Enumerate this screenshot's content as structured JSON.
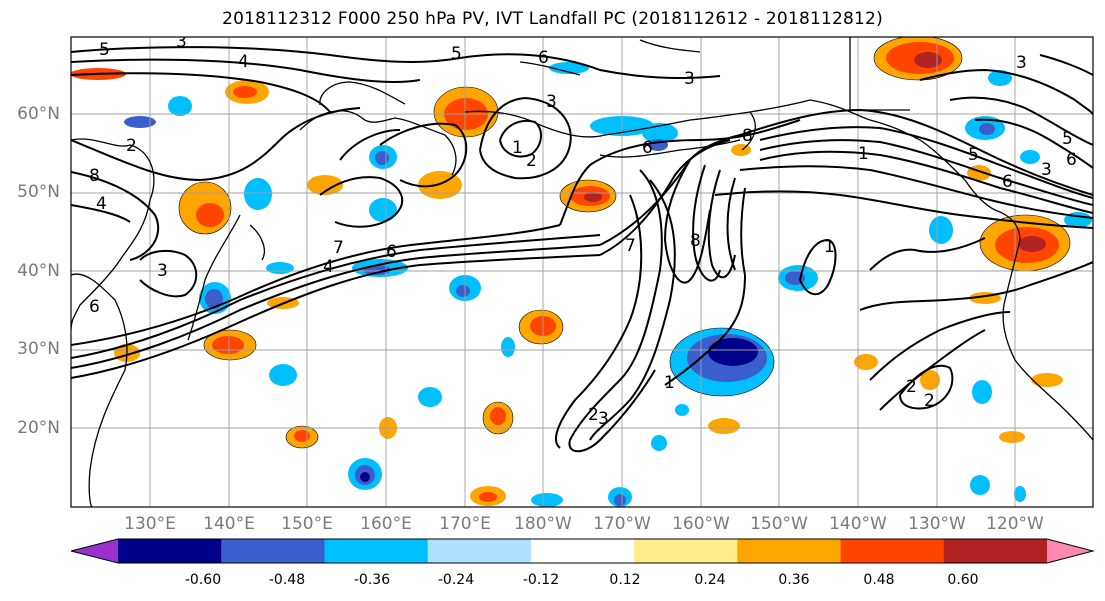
{
  "title": "2018112312 F000 250 hPa PV, IVT Landfall PC (2018112612 - 2018112812)",
  "lat_labels": [
    "60°N",
    "50°N",
    "40°N",
    "30°N",
    "20°N"
  ],
  "lon_labels": [
    "130°E",
    "140°E",
    "150°E",
    "160°E",
    "170°E",
    "180°W",
    "170°W",
    "160°W",
    "150°W",
    "140°W",
    "130°W",
    "120°W"
  ],
  "colorbar": {
    "colors": [
      "#9932cc",
      "#00008b",
      "#3a5fcd",
      "#00bfff",
      "#b0e2ff",
      "#ffffff",
      "#ffec8b",
      "#ffa500",
      "#ff4500",
      "#b22222",
      "#ff88b0"
    ],
    "tick_labels": [
      "-0.60",
      "-0.48",
      "-0.36",
      "-0.24",
      "-0.12",
      "0.12",
      "0.24",
      "0.36",
      "0.48",
      "0.60"
    ]
  },
  "pv_contour_labels": [
    "5",
    "3",
    "4",
    "5",
    "6",
    "3",
    "2",
    "1",
    "2",
    "8",
    "4",
    "3",
    "6",
    "7",
    "6",
    "4",
    "6",
    "7",
    "8",
    "1",
    "1",
    "2",
    "3",
    "2",
    "2",
    "5",
    "6",
    "5",
    "6",
    "3",
    "3",
    "1",
    "8",
    "3"
  ]
}
